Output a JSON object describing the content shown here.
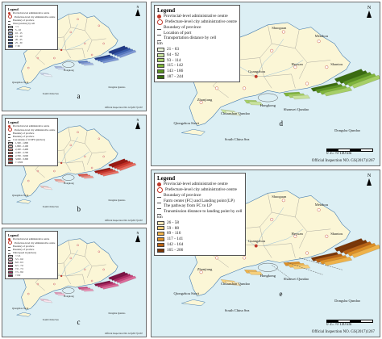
{
  "colors": {
    "sea": "#dceff4",
    "land": "#fbf6d6",
    "boundary": "#8a8a8a",
    "coast": "#4a7fb0",
    "centre": "#c0392b"
  },
  "icons": {
    "provincial_centre": "dot-icon",
    "prefecture_centre": "circle-icon",
    "north": "north-arrow-icon"
  },
  "panels": {
    "a": {
      "letter": "a",
      "legend_title": "Legend",
      "items": [
        "Provincial-level administrative centre",
        "Prefecture-level city administrative centre",
        "Boundary of province",
        "Wave [unclear] by cell"
      ],
      "classes": [
        "< 5",
        "5 - 10",
        "10 - 15",
        "15 - 20",
        "20 - 25",
        "25 - 30",
        "> 30"
      ],
      "class_colors": [
        "#eef2fb",
        "#c9d5f0",
        "#a3b7e4",
        "#7c98d6",
        "#5779c4",
        "#3559ad",
        "#1f3a8a"
      ],
      "labels": {
        "sea": "South China Sea",
        "dongsha": "Dongsha Qundao",
        "qiongzhou": "Qiongzhou Strait",
        "hongkong": "Hongkong"
      },
      "inspection": "Official Inspection NO. GS(2017)1267"
    },
    "b": {
      "letter": "b",
      "legend_title": "Legend",
      "items": [
        "Provincial-level administrative centre",
        "Prefecture-level city administrative centre",
        "Boundary of province",
        "Boundary of province",
        "Cost density of 10 MW [unclear]"
      ],
      "classes": [
        "1,500 - 1,800",
        "1,800 - 2,100",
        "2,100 - 2,400",
        "2,400 - 2,700",
        "2,700 - 3,000",
        "3,000 - 3,300",
        "> 3,300"
      ],
      "class_colors": [
        "#fde7e4",
        "#f9c2ba",
        "#f29b90",
        "#e96f63",
        "#db4a3d",
        "#c42b22",
        "#9a1610"
      ],
      "labels": {
        "sea": "South China Sea",
        "dongsha": "Dongsha Qundao",
        "qiongzhou": "Qiongzhou Strait",
        "hongkong": "Hongkong"
      },
      "inspection": "Official Inspection NO. GS(2017)1267"
    },
    "c": {
      "letter": "c",
      "legend_title": "Legend",
      "items": [
        "Provincial-level administrative centre",
        "Prefecture-level city administrative centre",
        "Boundary of province",
        "Boundary of province",
        "Wind speed in [unclear]"
      ],
      "classes": [
        "< 5.5",
        "5.5 - 6.0",
        "6.0 - 6.5",
        "6.5 - 7.0",
        "7.0 - 7.5",
        "7.5 - 8.0",
        "> 8.0"
      ],
      "class_colors": [
        "#fbe4ee",
        "#f3bfd4",
        "#e996b8",
        "#dc6b9a",
        "#c9447c",
        "#ab235f",
        "#7d0f42"
      ],
      "labels": {
        "sea": "South China Sea",
        "dongsha": "Dongsha Qundao",
        "qiongzhou": "Qiongzhou Strait",
        "hongkong": "Hongkong"
      },
      "inspection": "Official Inspection NO. GS(2017)1267"
    },
    "d": {
      "letter": "d",
      "legend_title": "Legend",
      "items": [
        "Provincial-level administrative centre",
        "Prefecture-level city administrative centre",
        "Boundary of province",
        "Location of port",
        "Transportation distance by cell"
      ],
      "unit": "km",
      "classes": [
        "21 - 63",
        "64 - 92",
        "93 - 114",
        "115 - 142",
        "143 - 186",
        "187 - 244"
      ],
      "class_colors": [
        "#e9f3d6",
        "#c8e29c",
        "#a6cf66",
        "#7fb53b",
        "#5a9322",
        "#3a6c10"
      ],
      "labels": {
        "sea": "South China Sea",
        "dongsha": "Dongsha Qundao",
        "qiongzhou": "Qiongzhou Strait",
        "hongkong": "Hongkong",
        "shanwei": "Shanwei Qundao",
        "chuanshan": "Chuanshan Qundao",
        "guangzhou": "Guangzhou",
        "shantou": "Shantou",
        "zhanjiang": "Zhanjiang",
        "meizhou": "Meizhou",
        "shaoguan": "Shaoguan",
        "heyuan": "Heyuan"
      },
      "scale": {
        "ticks": "0   35   70   140",
        "unit": "km"
      },
      "inspection": "Official Inspection NO.    GS(2017)1267"
    },
    "e": {
      "letter": "e",
      "legend_title": "Legend",
      "items": [
        "Provincial-level administrative centre",
        "Prefecture-level city administrative centre",
        "Boundary of province",
        "Farm center (FC) and Landing point (LP)",
        "The pathway from FC to LP",
        "Transmission distance to landing point by cell"
      ],
      "unit": "km",
      "classes": [
        "26 - 58",
        "59 - 88",
        "89 - 116",
        "117 - 141",
        "142 - 164",
        "165 - 206"
      ],
      "class_colors": [
        "#fbe8b8",
        "#f6cf7a",
        "#eeb24a",
        "#dd8f25",
        "#b86214",
        "#7a3606"
      ],
      "labels": {
        "sea": "South China Sea",
        "dongsha": "Dongsha Qundao",
        "qiongzhou": "Qiongzhou Strait",
        "hongkong": "Hongkong",
        "shanwei": "Shanwei Qundao",
        "chuanshan": "Chuanshan Qundao",
        "guangzhou": "Guangzhou",
        "shantou": "Shantou",
        "zhanjiang": "Zhanjiang",
        "meizhou": "Meizhou",
        "shaoguan": "Shaoguan",
        "heyuan": "Heyuan"
      },
      "scale": {
        "ticks": "0   35   70   140",
        "unit": "km"
      },
      "inspection": "Official Inspection NO.    GS(2017)1267"
    }
  }
}
